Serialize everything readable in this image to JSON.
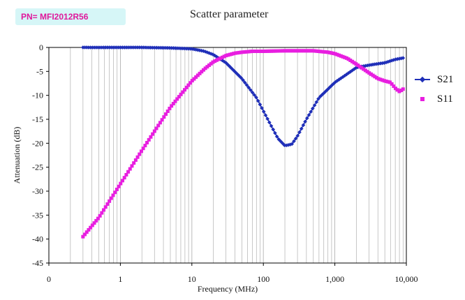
{
  "header": {
    "part_number": "PN= MFI2012R56"
  },
  "chart_data": {
    "type": "line",
    "title": "Scatter parameter",
    "xlabel": "Frequency (MHz)",
    "ylabel": "Attenuation (dB)",
    "x_scale": "log",
    "xlim": [
      0.1,
      10000
    ],
    "ylim": [
      -45,
      0
    ],
    "x_tick_labels": [
      "0",
      "1",
      "10",
      "100",
      "1,000",
      "10,000"
    ],
    "y_ticks": [
      0,
      -5,
      -10,
      -15,
      -20,
      -25,
      -30,
      -35,
      -40,
      -45
    ],
    "grid": "vertical log minor gridlines",
    "legend_position": "right",
    "series": [
      {
        "name": "S21",
        "color": "#1f2fb8",
        "marker": "diamond",
        "x": [
          0.3,
          0.5,
          1,
          2,
          5,
          10,
          15,
          20,
          30,
          50,
          80,
          120,
          160,
          200,
          250,
          300,
          400,
          600,
          1000,
          1500,
          2000,
          3000,
          5000,
          7000,
          9000
        ],
        "y": [
          0,
          0,
          0,
          0,
          -0.1,
          -0.3,
          -0.8,
          -1.5,
          -3.2,
          -6.5,
          -10.5,
          -15.5,
          -19,
          -20.5,
          -20.2,
          -18.5,
          -15,
          -10.5,
          -7.3,
          -5.5,
          -4.2,
          -3.7,
          -3.2,
          -2.5,
          -2.2
        ]
      },
      {
        "name": "S11",
        "color": "#e81ee0",
        "marker": "square",
        "x": [
          0.3,
          0.5,
          1,
          2,
          3,
          5,
          10,
          15,
          20,
          30,
          40,
          50,
          70,
          100,
          200,
          300,
          500,
          800,
          1000,
          1500,
          2000,
          3000,
          4000,
          5000,
          6000,
          7000,
          8000,
          9000
        ],
        "y": [
          -39.5,
          -35.5,
          -28.5,
          -21.5,
          -17.5,
          -12.5,
          -7,
          -4.5,
          -3,
          -1.7,
          -1.2,
          -1,
          -0.8,
          -0.8,
          -0.7,
          -0.7,
          -0.7,
          -1,
          -1.3,
          -2.3,
          -3.5,
          -5.3,
          -6.5,
          -7,
          -7.3,
          -8.5,
          -9.2,
          -8.7
        ]
      }
    ]
  }
}
